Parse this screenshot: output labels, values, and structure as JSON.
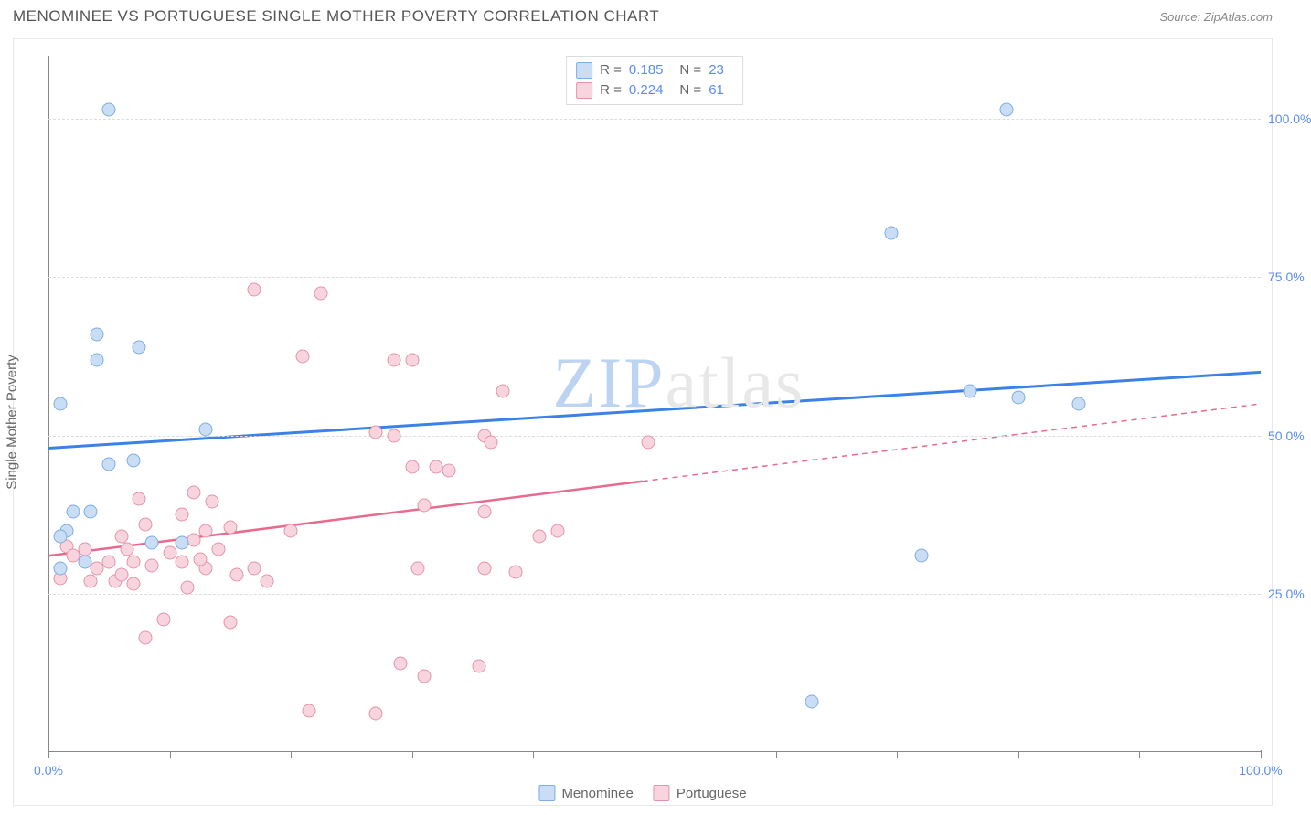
{
  "title": "MENOMINEE VS PORTUGUESE SINGLE MOTHER POVERTY CORRELATION CHART",
  "source_prefix": "Source: ",
  "source_name": "ZipAtlas.com",
  "y_axis_label": "Single Mother Poverty",
  "watermark": {
    "z": "ZIP",
    "rest": "atlas"
  },
  "chart": {
    "type": "scatter",
    "xlim": [
      0,
      100
    ],
    "ylim": [
      0,
      110
    ],
    "y_ticks": [
      25,
      50,
      75,
      100
    ],
    "y_tick_labels": [
      "25.0%",
      "50.0%",
      "75.0%",
      "100.0%"
    ],
    "x_major_ticks": [
      0,
      100
    ],
    "x_major_labels": [
      "0.0%",
      "100.0%"
    ],
    "x_minor_ticks": [
      10,
      20,
      30,
      40,
      50,
      60,
      70,
      80,
      90
    ],
    "grid_color": "#dcdcdc",
    "axis_color": "#888888",
    "background_color": "#ffffff",
    "marker_size": 15,
    "marker_border_width": 1.2
  },
  "series": {
    "menominee": {
      "label": "Menominee",
      "color_fill": "#c9ddf4",
      "color_stroke": "#7faee0",
      "r_value": "0.185",
      "n_value": "23",
      "trend": {
        "x1": 0,
        "y1": 48,
        "x2": 100,
        "y2": 60,
        "solid_until_x": 100,
        "color": "#3b82e6",
        "width": 3
      },
      "points": [
        [
          5,
          101.5
        ],
        [
          79,
          101.5
        ],
        [
          69.5,
          82
        ],
        [
          4,
          66
        ],
        [
          7.5,
          64
        ],
        [
          4,
          62
        ],
        [
          1,
          55
        ],
        [
          85,
          55
        ],
        [
          80,
          56
        ],
        [
          76,
          57
        ],
        [
          13,
          51
        ],
        [
          7,
          46
        ],
        [
          5,
          45.5
        ],
        [
          2,
          38
        ],
        [
          3.5,
          38
        ],
        [
          1.5,
          35
        ],
        [
          1,
          34
        ],
        [
          8.5,
          33
        ],
        [
          11,
          33
        ],
        [
          72,
          31
        ],
        [
          63,
          8
        ],
        [
          1,
          29
        ],
        [
          3,
          30
        ]
      ]
    },
    "portuguese": {
      "label": "Portuguese",
      "color_fill": "#f7d4de",
      "color_stroke": "#e394ab",
      "r_value": "0.224",
      "n_value": "61",
      "trend": {
        "x1": 0,
        "y1": 31,
        "x2": 100,
        "y2": 55,
        "solid_until_x": 49,
        "color": "#e86a8c",
        "width": 2.5
      },
      "points": [
        [
          17,
          73
        ],
        [
          22.5,
          72.5
        ],
        [
          21,
          62.5
        ],
        [
          28.5,
          62
        ],
        [
          30,
          62
        ],
        [
          37.5,
          57
        ],
        [
          27,
          50.5
        ],
        [
          28.5,
          50
        ],
        [
          36,
          50
        ],
        [
          36.5,
          49
        ],
        [
          49.5,
          49
        ],
        [
          30,
          45
        ],
        [
          32,
          45
        ],
        [
          33,
          44.5
        ],
        [
          12,
          41
        ],
        [
          7.5,
          40
        ],
        [
          13.5,
          39.5
        ],
        [
          31,
          39
        ],
        [
          36,
          38
        ],
        [
          11,
          37.5
        ],
        [
          8,
          36
        ],
        [
          15,
          35.5
        ],
        [
          13,
          35
        ],
        [
          20,
          35
        ],
        [
          42,
          35
        ],
        [
          6,
          34
        ],
        [
          12,
          33.5
        ],
        [
          40.5,
          34
        ],
        [
          1.5,
          32.5
        ],
        [
          3,
          32
        ],
        [
          6.5,
          32
        ],
        [
          10,
          31.5
        ],
        [
          5,
          30
        ],
        [
          7,
          30
        ],
        [
          8.5,
          29.5
        ],
        [
          11,
          30
        ],
        [
          13,
          29
        ],
        [
          15.5,
          28
        ],
        [
          17,
          29
        ],
        [
          30.5,
          29
        ],
        [
          36,
          29
        ],
        [
          38.5,
          28.5
        ],
        [
          1,
          27.5
        ],
        [
          3.5,
          27
        ],
        [
          5.5,
          27
        ],
        [
          7,
          26.5
        ],
        [
          11.5,
          26
        ],
        [
          9.5,
          21
        ],
        [
          15,
          20.5
        ],
        [
          8,
          18
        ],
        [
          29,
          14
        ],
        [
          35.5,
          13.5
        ],
        [
          31,
          12
        ],
        [
          21.5,
          6.5
        ],
        [
          27,
          6
        ],
        [
          4,
          29
        ],
        [
          6,
          28
        ],
        [
          2,
          31
        ],
        [
          12.5,
          30.5
        ],
        [
          14,
          32
        ],
        [
          18,
          27
        ]
      ]
    }
  },
  "stats_box": {
    "r_label": "R  = ",
    "n_label": "N  = "
  },
  "y_tick_label_color": "#5b8def",
  "x_tick_label_color": "#5b8def"
}
